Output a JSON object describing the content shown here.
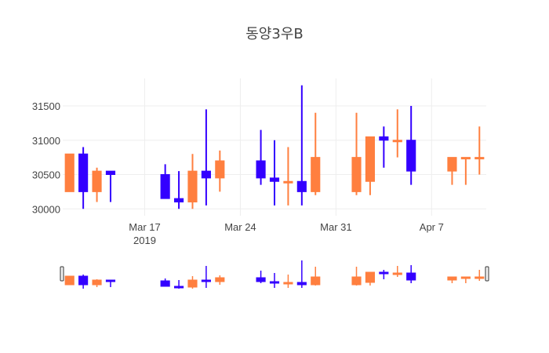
{
  "chart_data": {
    "type": "candlestick",
    "title": "동양3우B",
    "xlabel": "",
    "ylabel": "",
    "xlim": [
      "2019-03-11",
      "2019-04-10"
    ],
    "ylim": [
      29900,
      31900
    ],
    "y_ticks": [
      30000,
      30500,
      31000,
      31500
    ],
    "x_ticks": [
      {
        "date": "2019-03-17",
        "label": "Mar 17",
        "sublabel": "2019"
      },
      {
        "date": "2019-03-24",
        "label": "Mar 24",
        "sublabel": ""
      },
      {
        "date": "2019-03-31",
        "label": "Mar 31",
        "sublabel": ""
      },
      {
        "date": "2019-04-07",
        "label": "Apr 7",
        "sublabel": ""
      }
    ],
    "increasing_color": "#ff7f3f",
    "decreasing_color": "#3300ff",
    "grid": true,
    "range_slider": true,
    "candles": [
      {
        "date": "2019-03-11",
        "open": 30250,
        "high": 30800,
        "low": 30250,
        "close": 30800
      },
      {
        "date": "2019-03-12",
        "open": 30800,
        "high": 30900,
        "low": 30000,
        "close": 30250
      },
      {
        "date": "2019-03-13",
        "open": 30250,
        "high": 30600,
        "low": 30100,
        "close": 30550
      },
      {
        "date": "2019-03-14",
        "open": 30550,
        "high": 30550,
        "low": 30100,
        "close": 30500
      },
      {
        "date": "2019-03-18",
        "open": 30500,
        "high": 30650,
        "low": 30150,
        "close": 30150
      },
      {
        "date": "2019-03-19",
        "open": 30150,
        "high": 30550,
        "low": 30000,
        "close": 30100
      },
      {
        "date": "2019-03-20",
        "open": 30100,
        "high": 30800,
        "low": 30000,
        "close": 30550
      },
      {
        "date": "2019-03-21",
        "open": 30550,
        "high": 31450,
        "low": 30050,
        "close": 30450
      },
      {
        "date": "2019-03-22",
        "open": 30450,
        "high": 30850,
        "low": 30250,
        "close": 30700
      },
      {
        "date": "2019-03-25",
        "open": 30700,
        "high": 31150,
        "low": 30350,
        "close": 30450
      },
      {
        "date": "2019-03-26",
        "open": 30450,
        "high": 31000,
        "low": 30050,
        "close": 30400
      },
      {
        "date": "2019-03-27",
        "open": 30400,
        "high": 30900,
        "low": 30050,
        "close": 30400
      },
      {
        "date": "2019-03-28",
        "open": 30400,
        "high": 31800,
        "low": 30050,
        "close": 30250
      },
      {
        "date": "2019-03-29",
        "open": 30250,
        "high": 31400,
        "low": 30200,
        "close": 30750
      },
      {
        "date": "2019-04-01",
        "open": 30250,
        "high": 31400,
        "low": 30200,
        "close": 30750
      },
      {
        "date": "2019-04-02",
        "open": 30400,
        "high": 31050,
        "low": 30200,
        "close": 31050
      },
      {
        "date": "2019-04-03",
        "open": 31050,
        "high": 31200,
        "low": 30600,
        "close": 31000
      },
      {
        "date": "2019-04-04",
        "open": 31000,
        "high": 31450,
        "low": 30750,
        "close": 31000
      },
      {
        "date": "2019-04-05",
        "open": 31000,
        "high": 31500,
        "low": 30350,
        "close": 30550
      },
      {
        "date": "2019-04-08",
        "open": 30550,
        "high": 30750,
        "low": 30350,
        "close": 30750
      },
      {
        "date": "2019-04-09",
        "open": 30750,
        "high": 30750,
        "low": 30350,
        "close": 30750
      },
      {
        "date": "2019-04-10",
        "open": 30750,
        "high": 31200,
        "low": 30500,
        "close": 30750
      }
    ]
  }
}
